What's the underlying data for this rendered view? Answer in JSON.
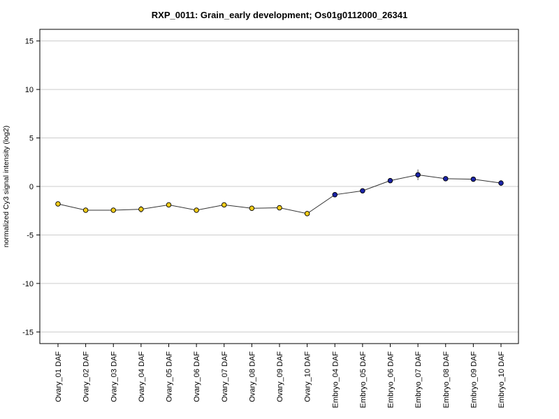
{
  "chart_data": {
    "type": "line",
    "title": "RXP_0011: Grain_early development; Os01g0112000_26341",
    "ylabel": "normalized Cy3 signal intensity (log2)",
    "xlabel": "",
    "ylim": [
      -16.2,
      16.2
    ],
    "yticks": [
      -15,
      -10,
      -5,
      0,
      5,
      10,
      15
    ],
    "grid": true,
    "legend": "none",
    "categories": [
      "Ovary_01 DAF",
      "Ovary_02 DAF",
      "Ovary_03 DAF",
      "Ovary_04 DAF",
      "Ovary_05 DAF",
      "Ovary_06 DAF",
      "Ovary_07 DAF",
      "Ovary_08 DAF",
      "Ovary_09 DAF",
      "Ovary_10 DAF",
      "Embryo_04 DAF",
      "Embryo_05 DAF",
      "Embryo_06 DAF",
      "Embryo_07 DAF",
      "Embryo_08 DAF",
      "Embryo_09 DAF",
      "Embryo_10 DAF"
    ],
    "values": [
      -1.8,
      -2.45,
      -2.45,
      -2.35,
      -1.9,
      -2.45,
      -1.9,
      -2.25,
      -2.2,
      -2.8,
      -0.85,
      -0.45,
      0.6,
      1.2,
      0.8,
      0.75,
      0.35
    ],
    "errors": [
      0.15,
      0.12,
      0.12,
      0.35,
      0.12,
      0.12,
      0.12,
      0.15,
      0.15,
      0.12,
      0.2,
      0.15,
      0.15,
      0.55,
      0.15,
      0.15,
      0.3
    ],
    "point_colors": [
      "#f2cc1a",
      "#f2cc1a",
      "#f2cc1a",
      "#f2cc1a",
      "#f2cc1a",
      "#f2cc1a",
      "#f2cc1a",
      "#f2cc1a",
      "#f2cc1a",
      "#f2cc1a",
      "#1b24a8",
      "#1b24a8",
      "#1b24a8",
      "#1b24a8",
      "#1b24a8",
      "#1b24a8",
      "#1b24a8"
    ],
    "colors": {
      "grid": "#cccccc",
      "axis": "#000000",
      "line": "#333333"
    }
  }
}
